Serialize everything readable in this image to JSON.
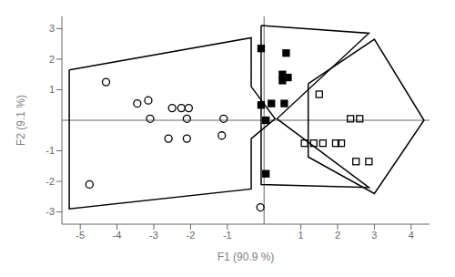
{
  "chart_data": {
    "type": "scatter",
    "xlabel": "F1 (90.9 %)",
    "ylabel": "F2 (9.1 %)",
    "xlim": [
      -5.5,
      4.5
    ],
    "ylim": [
      -3.4,
      3.4
    ],
    "xticks": [
      -5,
      -4,
      -3,
      -2,
      -1,
      1,
      2,
      3,
      4
    ],
    "yticks": [
      -3,
      -2,
      -1,
      1,
      2,
      3
    ],
    "grid": false,
    "series": [
      {
        "type": "polygon",
        "color": "#000000",
        "values": [
          [
            -5.3,
            1.65
          ],
          [
            -0.35,
            2.7
          ],
          [
            -0.35,
            1.1
          ],
          [
            0.3,
            0.05
          ],
          [
            -0.35,
            -0.6
          ],
          [
            -0.35,
            -2.25
          ],
          [
            -5.3,
            -2.9
          ]
        ]
      },
      {
        "type": "polygon",
        "color": "#000000",
        "values": [
          [
            -0.08,
            3.1
          ],
          [
            2.85,
            2.85
          ],
          [
            0.35,
            0.05
          ],
          [
            2.85,
            -2.2
          ],
          [
            -0.08,
            -2.1
          ]
        ]
      },
      {
        "type": "polygon",
        "color": "#000000",
        "values": [
          [
            1.2,
            1.2
          ],
          [
            3.0,
            2.65
          ],
          [
            4.35,
            0.0
          ],
          [
            3.0,
            -2.4
          ],
          [
            1.2,
            -1.2
          ]
        ]
      },
      {
        "type": "scatter",
        "marker": "open_circle",
        "color": "#000000",
        "values": [
          [
            -4.3,
            1.25
          ],
          [
            -3.15,
            0.65
          ],
          [
            -3.45,
            0.55
          ],
          [
            -2.5,
            0.4
          ],
          [
            -2.05,
            0.4
          ],
          [
            -2.25,
            0.4
          ],
          [
            -3.1,
            0.05
          ],
          [
            -2.1,
            0.05
          ],
          [
            -2.6,
            -0.6
          ],
          [
            -2.1,
            -0.6
          ],
          [
            -1.15,
            -0.5
          ],
          [
            -1.1,
            0.05
          ],
          [
            -4.75,
            -2.1
          ],
          [
            -0.1,
            -2.85
          ]
        ]
      },
      {
        "type": "scatter",
        "marker": "filled_square",
        "color": "#000000",
        "values": [
          [
            -0.08,
            2.35
          ],
          [
            0.6,
            2.2
          ],
          [
            0.5,
            1.5
          ],
          [
            0.65,
            1.4
          ],
          [
            0.5,
            1.3
          ],
          [
            0.2,
            0.55
          ],
          [
            0.55,
            0.55
          ],
          [
            -0.08,
            0.5
          ],
          [
            0.05,
            0.0
          ],
          [
            0.05,
            -1.75
          ]
        ]
      },
      {
        "type": "scatter",
        "marker": "open_square",
        "color": "#000000",
        "values": [
          [
            1.5,
            0.85
          ],
          [
            2.35,
            0.05
          ],
          [
            2.6,
            0.05
          ],
          [
            1.1,
            -0.75
          ],
          [
            1.35,
            -0.75
          ],
          [
            1.6,
            -0.75
          ],
          [
            1.95,
            -0.75
          ],
          [
            2.1,
            -0.75
          ],
          [
            2.5,
            -1.35
          ],
          [
            2.85,
            -1.35
          ]
        ]
      }
    ]
  }
}
